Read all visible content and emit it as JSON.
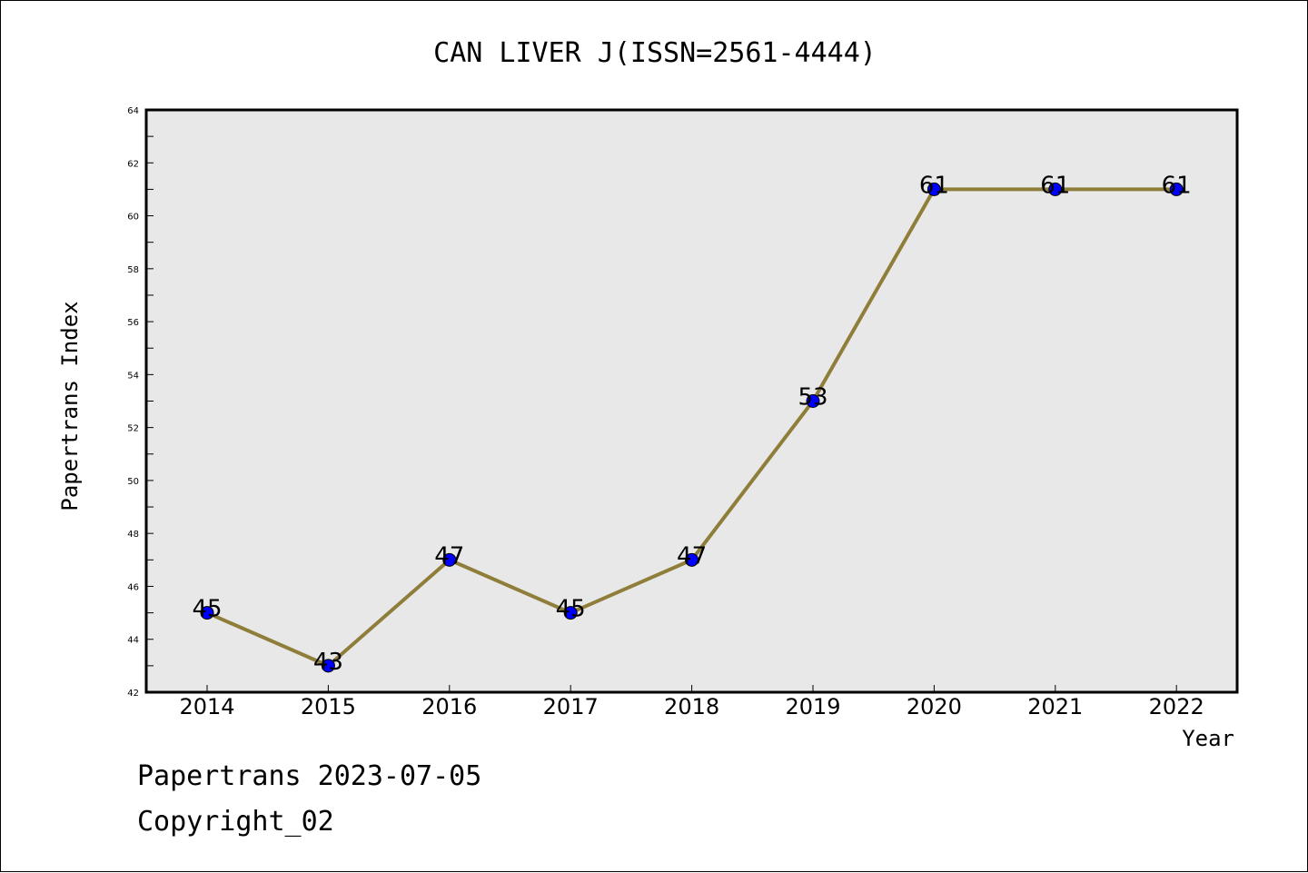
{
  "chart_data": {
    "type": "line",
    "title": "CAN LIVER J(ISSN=2561-4444)",
    "xlabel": "Year",
    "ylabel": "Papertrans Index",
    "categories": [
      "2014",
      "2015",
      "2016",
      "2017",
      "2018",
      "2019",
      "2020",
      "2021",
      "2022"
    ],
    "series": [
      {
        "values": [
          45,
          43,
          47,
          45,
          47,
          53,
          61,
          61,
          61
        ]
      }
    ],
    "data_labels": [
      "45",
      "43",
      "47",
      "45",
      "47",
      "53",
      "61",
      "61",
      "61"
    ],
    "ylim": [
      42,
      64
    ],
    "yticks": [
      42,
      44,
      46,
      48,
      50,
      52,
      54,
      56,
      58,
      60,
      62,
      64
    ],
    "grid": false,
    "legend": "none",
    "colors": {
      "line": "#8e7e3a",
      "marker": "#0000ff",
      "plot_background": "#e8e8e8"
    }
  },
  "footer": {
    "line1": "Papertrans 2023-07-05",
    "line2": "Copyright_02"
  }
}
